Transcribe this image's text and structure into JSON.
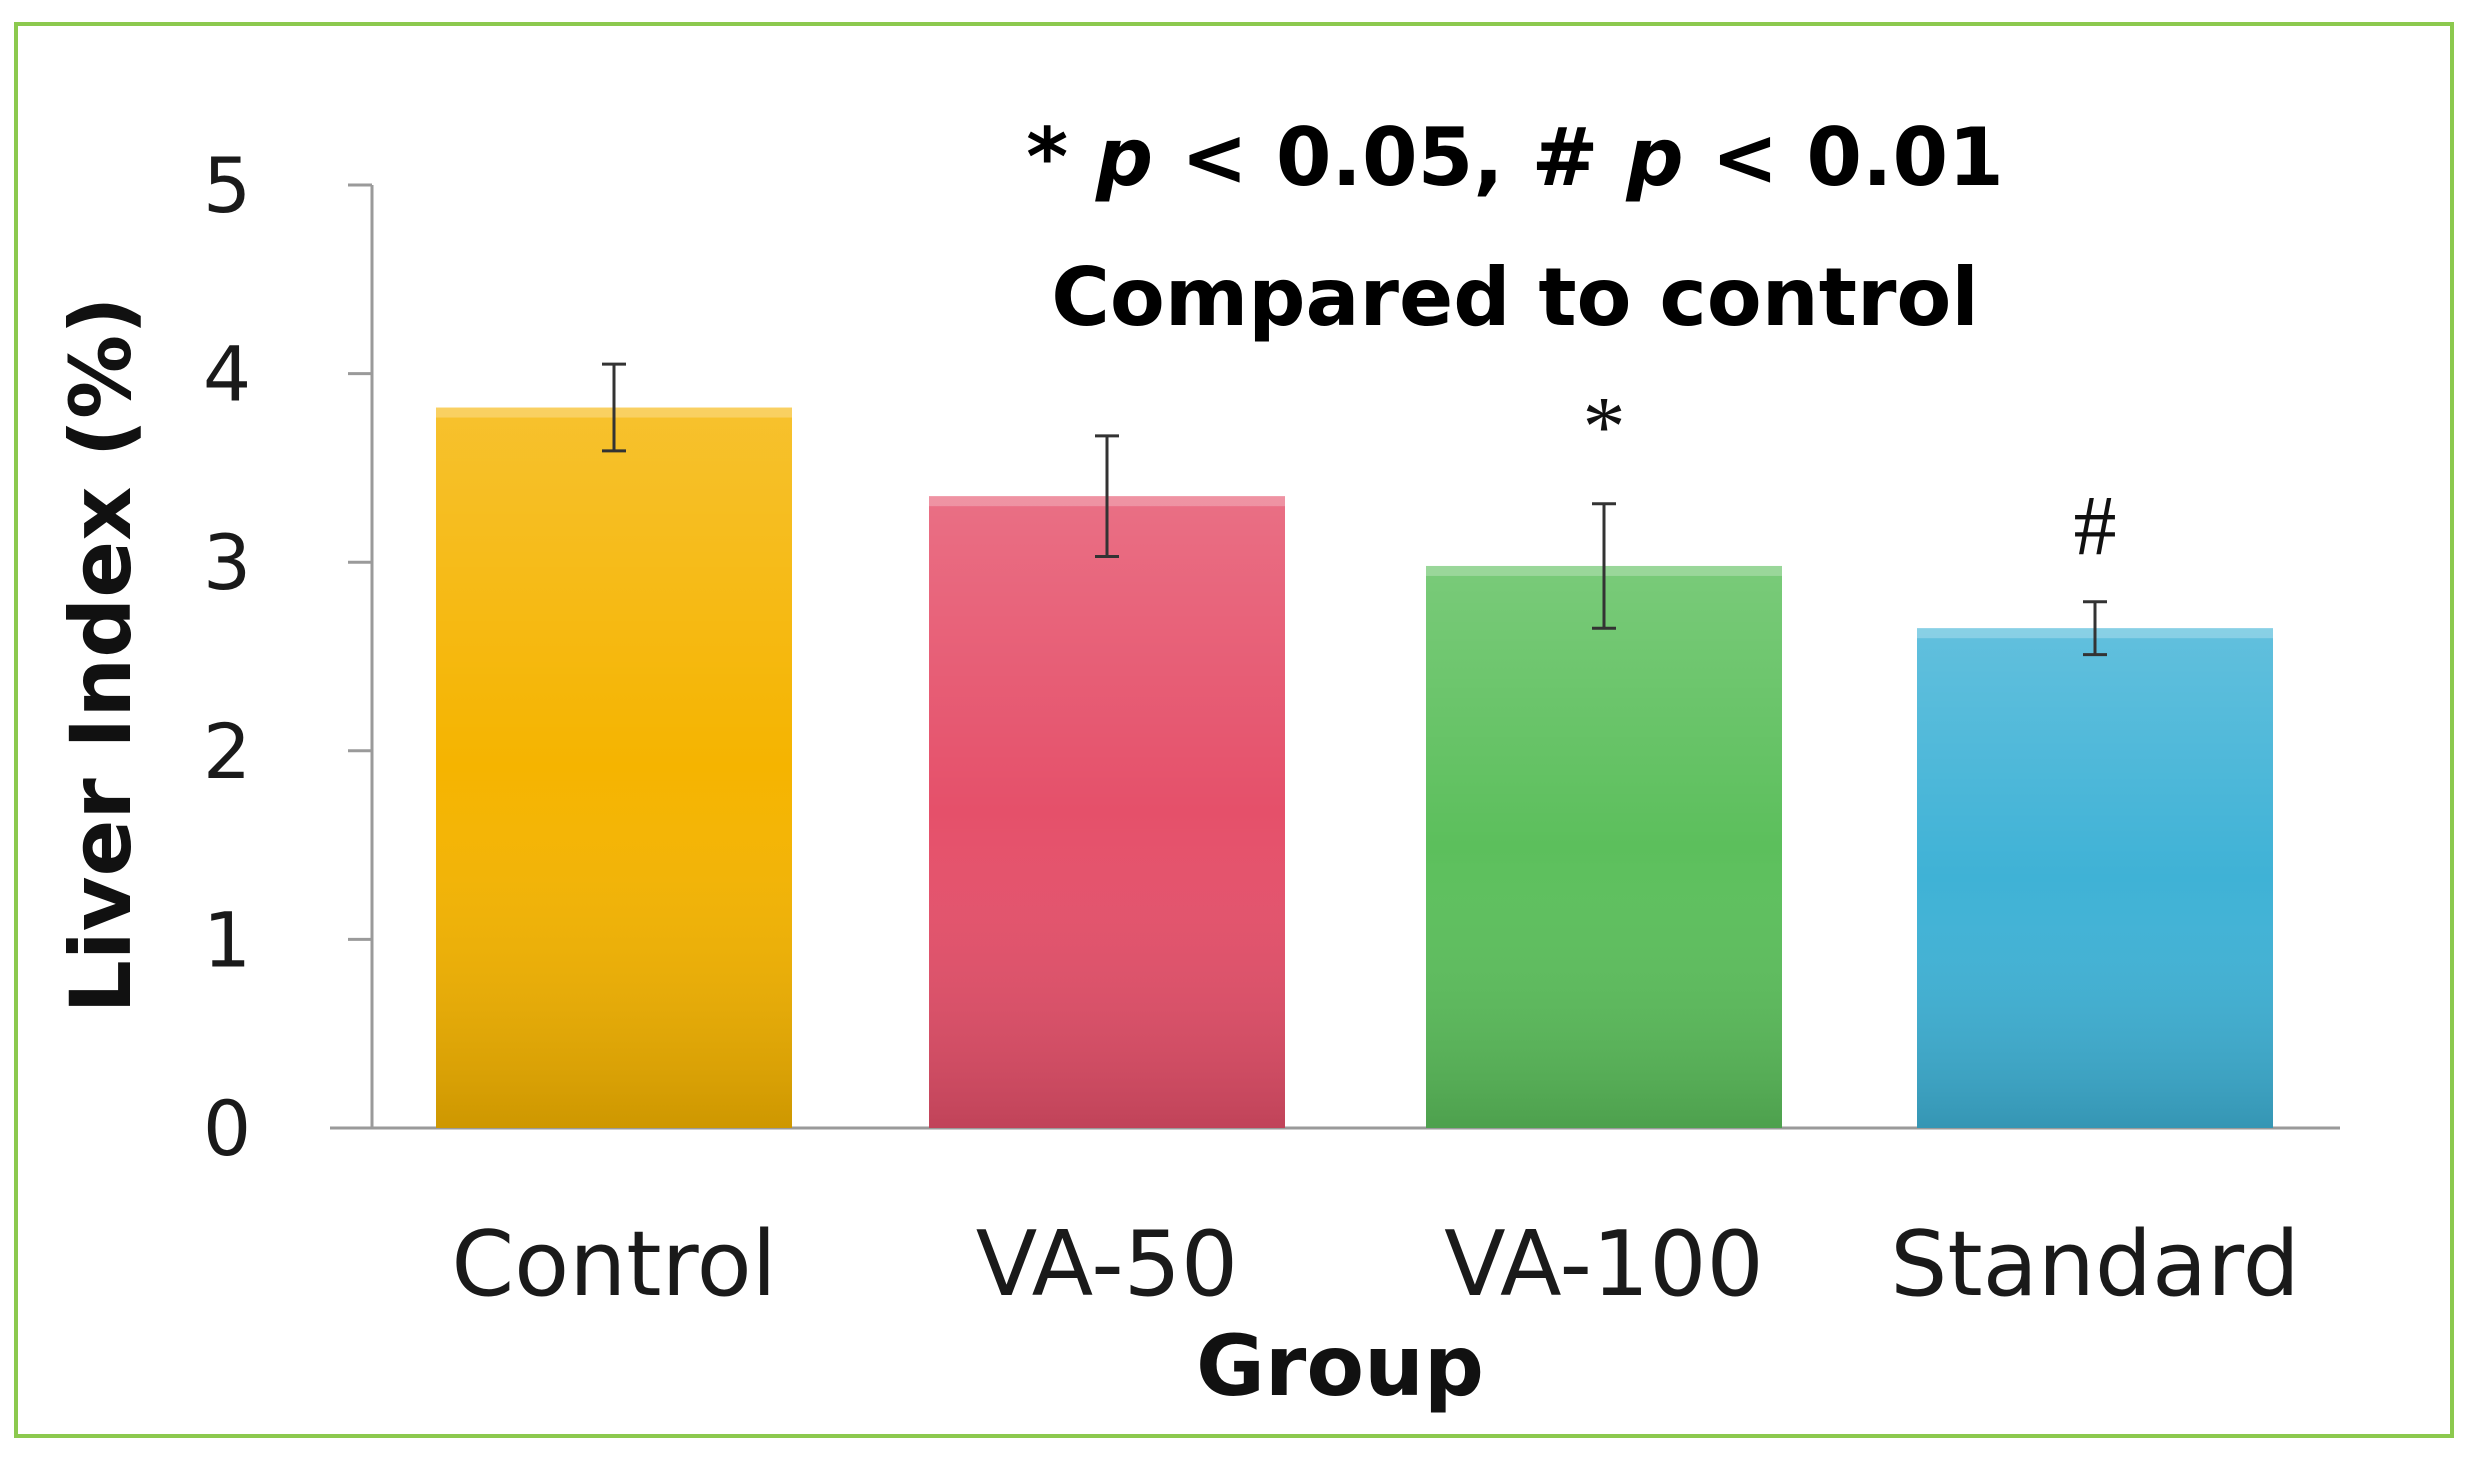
{
  "chart_data": {
    "type": "bar",
    "title": "",
    "annotation_line1": "* p < 0.05, # p < 0.01",
    "annotation_line1_parts": [
      "* ",
      "p",
      " < 0.05, # ",
      "p",
      " < 0.01"
    ],
    "annotation_line2": "Compared to control",
    "xlabel": "Group",
    "ylabel": "Liver Index (%)",
    "ylim": [
      0,
      5
    ],
    "yticks": [
      "0",
      "1",
      "2",
      "3",
      "4",
      "5"
    ],
    "categories": [
      "Control",
      "VA-50",
      "VA-100",
      "Standard"
    ],
    "values": [
      3.82,
      3.35,
      2.98,
      2.65
    ],
    "errors": [
      0.23,
      0.32,
      0.33,
      0.14
    ],
    "significance": [
      "",
      "",
      "*",
      "#"
    ],
    "colors": [
      "#f5b400",
      "#e5506a",
      "#5cbf5c",
      "#3fb2d6"
    ],
    "grid": false,
    "legend": "none"
  }
}
